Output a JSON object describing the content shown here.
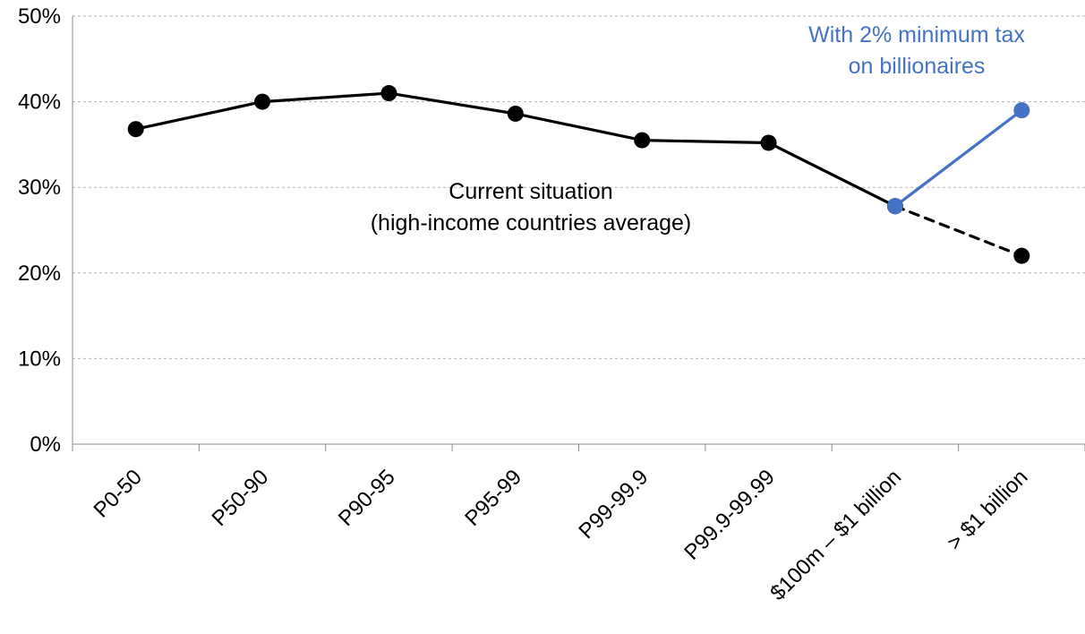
{
  "chart_data": {
    "type": "line",
    "categories": [
      "P0-50",
      "P50-90",
      "P90-95",
      "P95-99",
      "P99-99.9",
      "P99.9-99.99",
      "$100m – $1 billion",
      "> $1 billion"
    ],
    "y_tick_labels": [
      "0%",
      "10%",
      "20%",
      "30%",
      "40%",
      "50%"
    ],
    "ylim": [
      0,
      50
    ],
    "grid": "horizontal-dashed",
    "series": [
      {
        "key": "current",
        "color": "#000000",
        "values": [
          36.8,
          40.0,
          41.0,
          38.6,
          35.5,
          35.2,
          27.8,
          null
        ]
      },
      {
        "key": "current_extension",
        "color": "#000000",
        "style": "dashed",
        "values": [
          null,
          null,
          null,
          null,
          null,
          null,
          27.8,
          22.0
        ]
      },
      {
        "key": "with_tax",
        "color": "#4472C4",
        "values": [
          null,
          null,
          null,
          null,
          null,
          null,
          27.8,
          39.0
        ]
      }
    ],
    "annotations": [
      {
        "key": "current_label",
        "lines": [
          "Current situation",
          "(high-income countries average)"
        ],
        "color": "#000000"
      },
      {
        "key": "tax_label",
        "lines": [
          "With 2% minimum tax",
          "on billionaires"
        ],
        "color": "#4472C4"
      }
    ]
  }
}
